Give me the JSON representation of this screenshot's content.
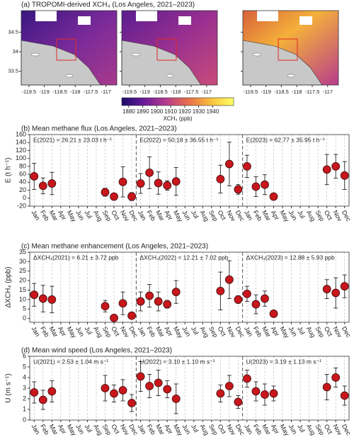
{
  "chart_data": [
    {
      "type": "map",
      "title": "(a) TROPOMI-derived XCH₄ (Los Angeles, 2021–2023)",
      "xlim": [
        -119.75,
        -116.65
      ],
      "xticks": [
        -119.5,
        -119.0,
        -118.5,
        -118.0,
        -117.5,
        -117.0
      ],
      "ylim": [
        33.15,
        35.05
      ],
      "yticks": [
        33.5,
        34.0,
        34.5
      ],
      "colorbar": {
        "label": "XCH₄ (ppb)",
        "lim": [
          1875,
          1955
        ],
        "ticks": [
          1880,
          1890,
          1900,
          1910,
          1920,
          1930,
          1940
        ],
        "colors": [
          "#1a0a6b",
          "#6a1b9a",
          "#b83c8c",
          "#e8704a",
          "#f8c23a",
          "#ffff66"
        ]
      }
    },
    {
      "type": "errorbar",
      "title": "(b) Mean methane flux (Los Angeles, 2021–2023)",
      "ylabel": "E (t h⁻¹)",
      "ylim": [
        -20,
        160
      ],
      "yticks": [
        -20,
        0,
        20,
        40,
        60,
        80,
        100,
        120,
        140,
        160
      ],
      "color": "#c8171c",
      "annotations": [
        "E(2021) = 26.21 ± 23.03 t h⁻¹",
        "E(2022) = 50.18 ± 36.55 t h⁻¹",
        "E(2023) = 62.77 ± 35.95 t h⁻¹"
      ],
      "categories": [
        "Jan",
        "Feb",
        "Mar",
        "Apr",
        "May",
        "Jun",
        "Jul",
        "Aug",
        "Sep",
        "Oct",
        "Nov",
        "Dec",
        "Jan",
        "Feb",
        "Mar",
        "Apr",
        "May",
        "Jun",
        "Jul",
        "Aug",
        "Sep",
        "Oct",
        "Nov",
        "Dec",
        "Jan",
        "Feb",
        "Mar",
        "Apr",
        "May",
        "Jun",
        "Jul",
        "Aug",
        "Sep",
        "Oct",
        "Nov",
        "Dec"
      ],
      "values": [
        55,
        31,
        37,
        null,
        null,
        null,
        null,
        null,
        15,
        4,
        41,
        4,
        37,
        64,
        38,
        32,
        42,
        null,
        null,
        null,
        null,
        48,
        86,
        22,
        80,
        29,
        34,
        4,
        null,
        null,
        null,
        null,
        null,
        72,
        80,
        57
      ],
      "errors": [
        33,
        20,
        28,
        null,
        null,
        null,
        null,
        null,
        10,
        8,
        38,
        10,
        25,
        40,
        28,
        12,
        35,
        null,
        null,
        null,
        null,
        35,
        55,
        12,
        28,
        25,
        25,
        5,
        null,
        null,
        null,
        null,
        null,
        38,
        30,
        35
      ]
    },
    {
      "type": "errorbar",
      "title": "(c) Mean methane enhancement (Los Angeles, 2021–2023)",
      "ylabel": "ΔXCH₄ (ppb)",
      "ylim": [
        -2,
        35
      ],
      "yticks": [
        0,
        5,
        10,
        15,
        20,
        25,
        30,
        35
      ],
      "color": "#c8171c",
      "annotations": [
        "ΔXCH₄(2021) = 6.21 ± 3.72 ppb",
        "ΔXCH₄(2022) = 12.21 ± 7.02 ppb",
        "ΔXCH₄(2023) = 12.88 ± 5.93 ppb"
      ],
      "categories": [
        "Jan",
        "Feb",
        "Mar",
        "Apr",
        "May",
        "Jun",
        "Jul",
        "Aug",
        "Sep",
        "Oct",
        "Nov",
        "Dec",
        "Jan",
        "Feb",
        "Mar",
        "Apr",
        "May",
        "Jun",
        "Jul",
        "Aug",
        "Sep",
        "Oct",
        "Nov",
        "Dec",
        "Jan",
        "Feb",
        "Mar",
        "Apr",
        "May",
        "Jun",
        "Jul",
        "Aug",
        "Sep",
        "Oct",
        "Nov",
        "Dec"
      ],
      "values": [
        12.5,
        10.5,
        10,
        null,
        null,
        null,
        null,
        null,
        6.5,
        0.3,
        8,
        1.5,
        9,
        12,
        9,
        7.5,
        14,
        null,
        null,
        null,
        null,
        14.5,
        20.5,
        10,
        13,
        7.5,
        10.5,
        2.5,
        null,
        null,
        null,
        null,
        null,
        15.5,
        13.5,
        17
      ],
      "errors": [
        6,
        7,
        7,
        null,
        null,
        null,
        null,
        null,
        3,
        0.5,
        6,
        1.5,
        5,
        6,
        5,
        2,
        6,
        null,
        null,
        null,
        null,
        10,
        10,
        2,
        4,
        5,
        4,
        1,
        null,
        null,
        null,
        null,
        null,
        5,
        8,
        6
      ]
    },
    {
      "type": "errorbar",
      "title": "(d) Mean wind speed (Los Angeles, 2021–2023)",
      "ylabel": "U (m s⁻¹)",
      "ylim": [
        0,
        6
      ],
      "yticks": [
        0,
        1,
        2,
        3,
        4,
        5,
        6
      ],
      "color": "#c8171c",
      "annotations": [
        "U(2021) = 2.53 ± 1.04 m s⁻¹",
        "U(2022) = 3.10 ± 1.10 m s⁻¹",
        "U(2023) = 3.19 ± 1.13 m s⁻¹"
      ],
      "categories": [
        "Jan",
        "Feb",
        "Mar",
        "Apr",
        "May",
        "Jun",
        "Jul",
        "Aug",
        "Sep",
        "Oct",
        "Nov",
        "Dec",
        "Jan",
        "Feb",
        "Mar",
        "Apr",
        "May",
        "Jun",
        "Jul",
        "Aug",
        "Sep",
        "Oct",
        "Nov",
        "Dec",
        "Jan",
        "Feb",
        "Mar",
        "Apr",
        "May",
        "Jun",
        "Jul",
        "Aug",
        "Sep",
        "Oct",
        "Nov",
        "Dec"
      ],
      "values": [
        2.6,
        1.9,
        2.7,
        null,
        null,
        null,
        null,
        null,
        3.0,
        2.5,
        2.8,
        1.6,
        4.1,
        3.2,
        3.5,
        2.9,
        2.0,
        null,
        null,
        null,
        null,
        2.5,
        3.2,
        1.7,
        3.9,
        2.7,
        2.4,
        2.5,
        null,
        null,
        null,
        null,
        null,
        3.1,
        4.0,
        2.3
      ],
      "errors": [
        1,
        0.9,
        1,
        null,
        null,
        null,
        null,
        null,
        1.2,
        0.8,
        1,
        0.8,
        1.4,
        1.1,
        1.2,
        0.8,
        1.4,
        null,
        null,
        null,
        null,
        0.8,
        1,
        0.6,
        0.8,
        0.9,
        1,
        0.7,
        null,
        null,
        null,
        null,
        null,
        1.2,
        0.9,
        0.9
      ]
    }
  ]
}
